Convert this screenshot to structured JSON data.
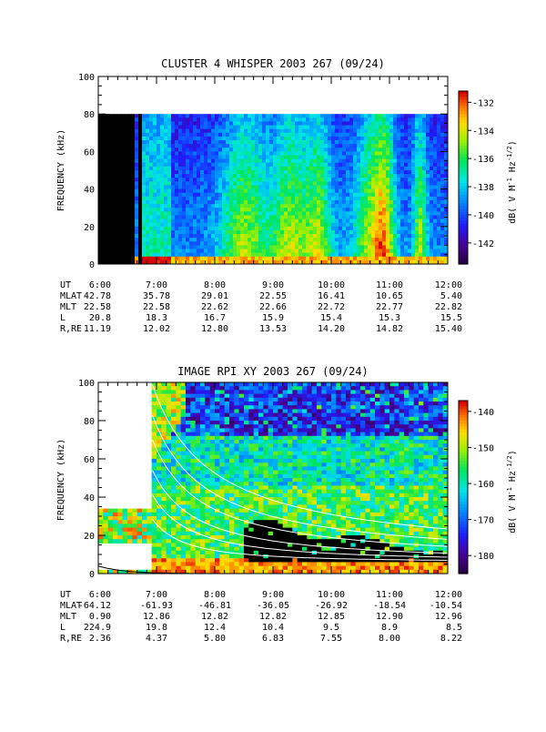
{
  "panels": [
    {
      "title": "CLUSTER 4 WHISPER 2003 267 (09/24)",
      "ylabel": "FREQUENCY (kHz)",
      "yticks": [
        "0",
        "20",
        "40",
        "60",
        "80",
        "100"
      ],
      "ylim": [
        0,
        100
      ],
      "data_top_khz": 80,
      "xticks": [
        "6:00",
        "7:00",
        "8:00",
        "9:00",
        "10:00",
        "11:00",
        "12:00"
      ],
      "colorbar": {
        "label_parts": [
          "dB( V M",
          "-1",
          " Hz",
          "-1/2",
          ")"
        ],
        "ticks": [
          "-132",
          "-134",
          "-136",
          "-138",
          "-140",
          "-142"
        ],
        "range": [
          -143.5,
          -131.2
        ]
      },
      "eph_labels": [
        "UT",
        "MLAT",
        "MLT",
        "L",
        "R,RE"
      ],
      "eph_values": [
        [
          "6:00",
          "7:00",
          "8:00",
          "9:00",
          "10:00",
          "11:00",
          "12:00"
        ],
        [
          "42.78",
          "35.78",
          "29.01",
          "22.55",
          "16.41",
          "10.65",
          "5.40"
        ],
        [
          "22.58",
          "22.58",
          "22.62",
          "22.66",
          "22.72",
          "22.77",
          "22.82"
        ],
        [
          "20.8",
          "18.3",
          "16.7",
          "15.9",
          "15.4",
          "15.3",
          "15.5"
        ],
        [
          "11.19",
          "12.02",
          "12.80",
          "13.53",
          "14.20",
          "14.82",
          "15.40"
        ]
      ]
    },
    {
      "title": "IMAGE RPI XY 2003 267 (09/24)",
      "ylabel": "FREQUENCY (kHz)",
      "yticks": [
        "0",
        "20",
        "40",
        "60",
        "80",
        "100"
      ],
      "ylim": [
        0,
        100
      ],
      "xticks": [
        "6:00",
        "7:00",
        "8:00",
        "9:00",
        "10:00",
        "11:00",
        "12:00"
      ],
      "colorbar": {
        "label_parts": [
          "dB( V M",
          "-1",
          " Hz",
          "-1/2",
          ")"
        ],
        "ticks": [
          "-140",
          "-150",
          "-160",
          "-170",
          "-180"
        ],
        "range": [
          -185,
          -137
        ]
      },
      "eph_labels": [
        "UT",
        "MLAT",
        "MLT",
        "L",
        "R,RE"
      ],
      "eph_values": [
        [
          "6:00",
          "7:00",
          "8:00",
          "9:00",
          "10:00",
          "11:00",
          "12:00"
        ],
        [
          "-64.12",
          "-61.93",
          "-46.81",
          "-36.05",
          "-26.92",
          "-18.54",
          "-10.54"
        ],
        [
          "0.90",
          "12.86",
          "12.82",
          "12.82",
          "12.85",
          "12.90",
          "12.96"
        ],
        [
          "224.9",
          "19.8",
          "12.4",
          "10.4",
          "9.5",
          "8.9",
          "8.5"
        ],
        [
          "2.36",
          "4.37",
          "5.80",
          "6.83",
          "7.55",
          "8.00",
          "8.22"
        ]
      ]
    }
  ],
  "chart_data": [
    {
      "type": "heatmap",
      "title": "CLUSTER 4 WHISPER 2003 267 (09/24)",
      "xlabel": "UT",
      "ylabel": "FREQUENCY (kHz)",
      "colorbar_label": "dB( V M-1 Hz-1/2)",
      "xlim": [
        "6:00",
        "12:00"
      ],
      "ylim": [
        0,
        100
      ],
      "zlim": [
        -143.5,
        -131.2
      ],
      "data_gap": {
        "from": "6:00",
        "to": "6:40"
      },
      "data_top_khz": 80
    },
    {
      "type": "heatmap",
      "title": "IMAGE RPI XY 2003 267 (09/24)",
      "xlabel": "UT",
      "ylabel": "FREQUENCY (kHz)",
      "colorbar_label": "dB( V M-1 Hz-1/2)",
      "xlim": [
        "6:00",
        "12:00"
      ],
      "ylim": [
        0,
        100
      ],
      "zlim": [
        -185,
        -137
      ]
    }
  ]
}
